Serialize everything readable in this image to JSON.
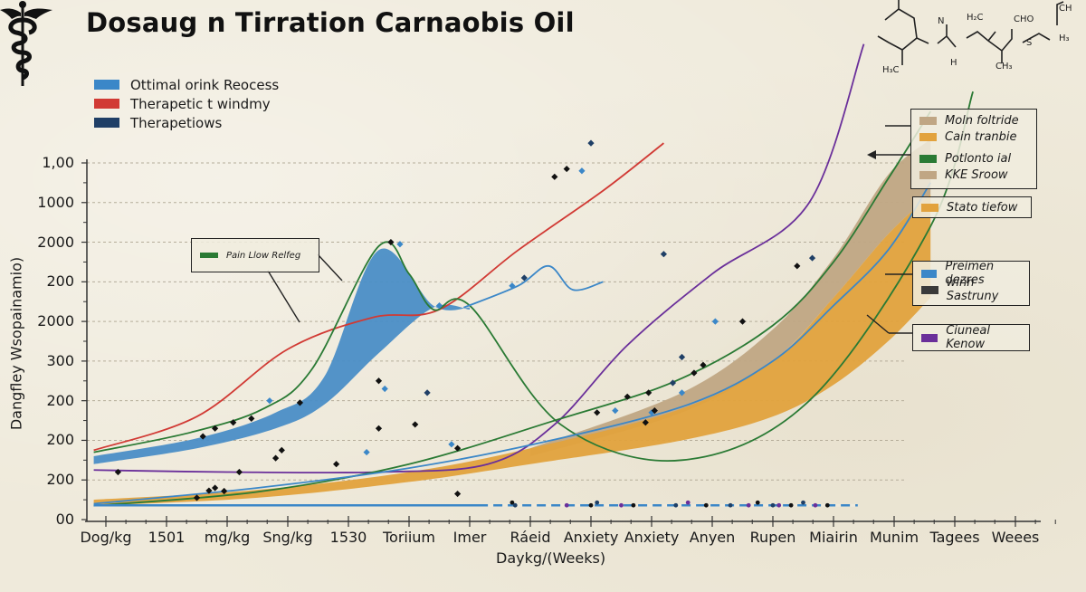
{
  "title": "Dosaug  n  Tirration Carnaobis Oil",
  "icons": {
    "logo": "caduceus-icon",
    "molecule": "chemical-structure-diagram"
  },
  "molecule_labels": [
    "N",
    "H₂C",
    "CHO",
    "CH",
    "H",
    "H₃C",
    "CH₃",
    "S",
    "H₃"
  ],
  "legend_top": [
    {
      "label": "Ottimal orink Reocess",
      "color": "#3b87c8"
    },
    {
      "label": "Therapetic t windmy",
      "color": "#d13a34"
    },
    {
      "label": "Therapetiows",
      "color": "#1f3f66"
    }
  ],
  "callouts": {
    "pain": {
      "label": "Pain Llow Relfeg",
      "color": "#2a7a34"
    },
    "right_group": [
      {
        "label": "Moln foltride",
        "color": "#c0a684"
      },
      {
        "label": "Cain tranbie",
        "color": "#e2a23d"
      },
      {
        "label": "Potlonto ial",
        "color": "#2a7a34"
      },
      {
        "label": "KKE Sroow",
        "color": "#c0a684"
      }
    ],
    "stato": {
      "label": "Stato tiefow",
      "color": "#e2a23d"
    },
    "premen": [
      {
        "label": "Preimen dezres",
        "color": "#3b87c8"
      },
      {
        "label": "winn Sastruny",
        "color": "#3a3a3a"
      }
    ],
    "cluneal": {
      "label": "Ciuneal Kenow",
      "color": "#6a2f9a"
    }
  },
  "chart_data": {
    "type": "line",
    "title": "Dosaug  n  Tirration Carnaobis Oil",
    "xlabel": "Daykg/(Weeks)",
    "ylabel": "Dangfley Wsopainamio)",
    "x_ticks": [
      "Dog/kg",
      "1501",
      "mg/kg",
      "Sng/kg",
      "1530",
      "Toriium",
      "Imer",
      "Ráeid",
      "Anxiety",
      "Anxiety",
      "Anyen",
      "Rupen",
      "Miairin",
      "Munim",
      "Tagees",
      "Weees"
    ],
    "y_ticks": [
      "00",
      "200",
      "200",
      "200",
      "300",
      "2000",
      "200",
      "2000",
      "1000",
      "1,00"
    ],
    "x_range": [
      0,
      15
    ],
    "y_range": [
      0,
      9
    ],
    "grid": true,
    "legend_position": "top-left and right callouts",
    "series": [
      {
        "name": "Therapetic t windmy",
        "kind": "line",
        "color": "#d13a34",
        "x": [
          -0.2,
          1.5,
          3.0,
          4.4,
          5.5,
          6.8,
          8.2,
          9.2
        ],
        "y": [
          1.75,
          2.6,
          4.3,
          5.1,
          5.3,
          6.8,
          8.3,
          9.5
        ]
      },
      {
        "name": "Pain Llow Relfeg",
        "kind": "line",
        "color": "#2a7a34",
        "x": [
          -0.2,
          1.4,
          2.6,
          3.4,
          4.5,
          5.0,
          5.4,
          6.0,
          7.5,
          9.5,
          11.6,
          13.6,
          14.3
        ],
        "y": [
          1.7,
          2.2,
          2.8,
          3.8,
          6.9,
          6.2,
          5.3,
          5.4,
          2.4,
          1.5,
          3.0,
          7.4,
          10.8
        ]
      },
      {
        "name": "Ottimal orink Reocess",
        "kind": "band",
        "color": "#4a8ec6",
        "x": [
          -0.2,
          1.5,
          2.8,
          3.6,
          4.5,
          5.4,
          6.0
        ],
        "upper": [
          1.6,
          2.05,
          2.7,
          3.6,
          6.8,
          5.4,
          5.35
        ],
        "lower": [
          1.4,
          1.8,
          2.3,
          2.9,
          4.2,
          5.35,
          5.3
        ]
      },
      {
        "name": "Preimen dezres",
        "kind": "line",
        "color": "#3b87c8",
        "x": [
          5.9,
          6.8,
          7.3,
          7.7,
          8.2
        ],
        "y": [
          5.35,
          5.9,
          6.4,
          5.8,
          6.0
        ]
      },
      {
        "name": "Ciuneal Kenow",
        "kind": "line",
        "color": "#6a2f9a",
        "x": [
          -0.2,
          2.0,
          4.5,
          6.3,
          7.4,
          8.6,
          10.0,
          11.6,
          12.5
        ],
        "y": [
          1.25,
          1.2,
          1.2,
          1.4,
          2.4,
          4.4,
          6.2,
          8.0,
          12.0
        ]
      },
      {
        "name": "Potlonto ial",
        "kind": "line",
        "color": "#2a7a34",
        "x": [
          -0.2,
          2.5,
          5.0,
          7.4,
          9.4,
          11.0,
          12.0,
          12.9,
          13.6
        ],
        "y": [
          0.35,
          0.7,
          1.4,
          2.5,
          3.5,
          4.9,
          6.5,
          8.6,
          10.3
        ]
      },
      {
        "name": "KKE Sroow",
        "kind": "band",
        "color": "#c0a684",
        "x": [
          7.0,
          9.5,
          11.0,
          12.0,
          12.9,
          13.6
        ],
        "upper": [
          1.8,
          3.2,
          4.8,
          6.6,
          8.7,
          9.6
        ],
        "lower": [
          1.6,
          2.7,
          4.0,
          5.6,
          7.2,
          8.2
        ]
      },
      {
        "name": "Cain tranbie",
        "kind": "band",
        "color": "#e2a23d",
        "x": [
          -0.2,
          2.5,
          5.0,
          7.0,
          9.5,
          11.0,
          12.0,
          12.9,
          13.6
        ],
        "upper": [
          0.5,
          0.75,
          1.2,
          1.8,
          2.8,
          4.0,
          5.6,
          7.2,
          8.2
        ],
        "lower": [
          0.35,
          0.55,
          0.95,
          1.4,
          2.0,
          2.6,
          3.4,
          4.5,
          5.6
        ]
      },
      {
        "name": "winn Sastruny",
        "kind": "line",
        "color": "#3b87c8",
        "x": [
          -0.2,
          2.5,
          5.0,
          7.2,
          9.6,
          11.0,
          12.0,
          12.9,
          13.6
        ],
        "y": [
          0.4,
          0.8,
          1.3,
          1.95,
          2.9,
          4.0,
          5.4,
          6.8,
          8.5
        ]
      },
      {
        "name": "Therapetiows",
        "kind": "dashed",
        "color": "#3b87c8",
        "x": [
          -0.2,
          6.3,
          7.4,
          12.4
        ],
        "y": [
          0.36,
          0.36,
          0.36,
          0.36
        ]
      }
    ],
    "points": [
      {
        "x": 0.2,
        "y": 1.2,
        "c": "#111"
      },
      {
        "x": 1.5,
        "y": 0.55,
        "c": "#111"
      },
      {
        "x": 1.7,
        "y": 0.73,
        "c": "#111"
      },
      {
        "x": 1.8,
        "y": 0.8,
        "c": "#111"
      },
      {
        "x": 1.95,
        "y": 0.72,
        "c": "#111"
      },
      {
        "x": 1.6,
        "y": 2.1,
        "c": "#111"
      },
      {
        "x": 1.8,
        "y": 2.3,
        "c": "#111"
      },
      {
        "x": 2.1,
        "y": 2.45,
        "c": "#111"
      },
      {
        "x": 2.4,
        "y": 2.55,
        "c": "#111"
      },
      {
        "x": 2.2,
        "y": 1.2,
        "c": "#111"
      },
      {
        "x": 2.8,
        "y": 1.55,
        "c": "#111"
      },
      {
        "x": 2.9,
        "y": 1.75,
        "c": "#111"
      },
      {
        "x": 3.2,
        "y": 2.95,
        "c": "#111"
      },
      {
        "x": 2.7,
        "y": 3.0,
        "c": "#3b87c8"
      },
      {
        "x": 3.8,
        "y": 1.4,
        "c": "#111"
      },
      {
        "x": 4.5,
        "y": 3.5,
        "c": "#111"
      },
      {
        "x": 4.5,
        "y": 2.3,
        "c": "#111"
      },
      {
        "x": 4.6,
        "y": 3.3,
        "c": "#3b87c8"
      },
      {
        "x": 4.3,
        "y": 1.7,
        "c": "#3b87c8"
      },
      {
        "x": 5.1,
        "y": 2.4,
        "c": "#111"
      },
      {
        "x": 5.3,
        "y": 3.2,
        "c": "#1f3f66"
      },
      {
        "x": 5.7,
        "y": 1.9,
        "c": "#3b87c8"
      },
      {
        "x": 5.8,
        "y": 1.8,
        "c": "#111"
      },
      {
        "x": 5.8,
        "y": 0.65,
        "c": "#111"
      },
      {
        "x": 4.7,
        "y": 7.0,
        "c": "#111"
      },
      {
        "x": 4.85,
        "y": 6.95,
        "c": "#3b87c8"
      },
      {
        "x": 5.5,
        "y": 5.4,
        "c": "#3b87c8"
      },
      {
        "x": 6.7,
        "y": 5.9,
        "c": "#3b87c8"
      },
      {
        "x": 6.9,
        "y": 6.1,
        "c": "#1f3f66"
      },
      {
        "x": 7.4,
        "y": 8.65,
        "c": "#111"
      },
      {
        "x": 7.6,
        "y": 8.85,
        "c": "#111"
      },
      {
        "x": 7.85,
        "y": 8.8,
        "c": "#3b87c8"
      },
      {
        "x": 8.0,
        "y": 9.5,
        "c": "#1f3f66"
      },
      {
        "x": 9.2,
        "y": 6.7,
        "c": "#1f3f66"
      },
      {
        "x": 8.1,
        "y": 2.7,
        "c": "#111"
      },
      {
        "x": 8.4,
        "y": 2.75,
        "c": "#3b87c8"
      },
      {
        "x": 8.6,
        "y": 3.1,
        "c": "#111"
      },
      {
        "x": 8.9,
        "y": 2.45,
        "c": "#111"
      },
      {
        "x": 9.0,
        "y": 2.7,
        "c": "#3b87c8"
      },
      {
        "x": 9.05,
        "y": 2.75,
        "c": "#111"
      },
      {
        "x": 8.95,
        "y": 3.2,
        "c": "#111"
      },
      {
        "x": 9.7,
        "y": 3.7,
        "c": "#111"
      },
      {
        "x": 9.35,
        "y": 3.45,
        "c": "#1f3f66"
      },
      {
        "x": 9.5,
        "y": 4.1,
        "c": "#1f3f66"
      },
      {
        "x": 9.5,
        "y": 3.2,
        "c": "#3b87c8"
      },
      {
        "x": 10.05,
        "y": 5.0,
        "c": "#3b87c8"
      },
      {
        "x": 10.5,
        "y": 5.0,
        "c": "#111"
      },
      {
        "x": 11.4,
        "y": 6.4,
        "c": "#111"
      },
      {
        "x": 11.65,
        "y": 6.6,
        "c": "#1f3f66"
      },
      {
        "x": 9.85,
        "y": 3.9,
        "c": "#111"
      }
    ]
  }
}
